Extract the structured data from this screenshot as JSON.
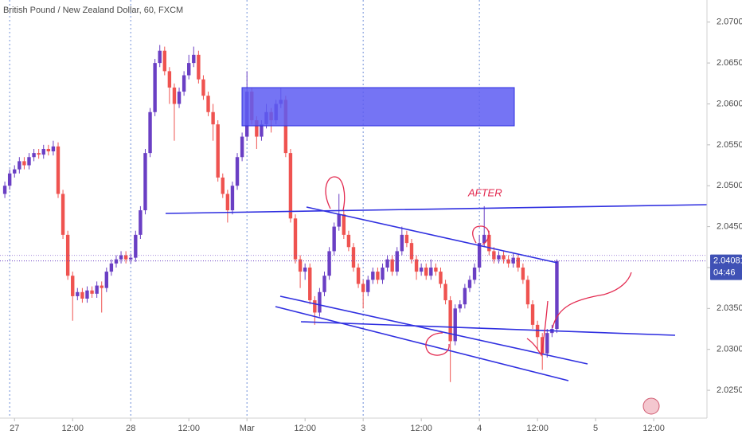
{
  "chart_data": {
    "type": "candlestick",
    "title": "British Pound / New Zealand Dollar, 60, FXCM",
    "up_color": "#6a3fc4",
    "down_color": "#ef5350",
    "x": [
      -2,
      -1,
      0,
      1,
      2,
      3,
      4,
      5,
      6,
      7,
      8,
      9,
      10,
      11,
      12,
      13,
      14,
      15,
      16,
      17,
      18,
      19,
      20,
      21,
      22,
      23,
      24,
      25,
      26,
      27,
      28,
      29,
      30,
      31,
      32,
      33,
      34,
      35,
      36,
      37,
      38,
      39,
      40,
      41,
      42,
      43,
      44,
      45,
      46,
      47,
      48,
      49,
      50,
      51,
      52,
      53,
      54,
      55,
      56,
      57,
      58,
      59,
      60,
      61,
      62,
      63,
      64,
      65,
      66,
      67,
      68,
      69,
      70,
      71,
      72,
      73,
      74,
      75,
      76,
      77,
      78,
      79,
      80,
      81,
      82,
      83,
      84,
      85,
      86,
      87,
      88,
      89,
      90,
      91,
      92,
      93,
      94,
      95,
      96,
      97,
      98,
      99,
      100,
      101,
      102,
      103,
      104,
      105,
      106,
      107,
      108,
      109,
      110,
      111,
      112
    ],
    "open": [
      2.049,
      2.05,
      2.0515,
      2.052,
      2.053,
      2.0525,
      2.0535,
      2.054,
      2.0538,
      2.0545,
      2.0542,
      2.0548,
      2.049,
      2.044,
      2.039,
      2.0365,
      2.037,
      2.0362,
      2.0372,
      2.0368,
      2.0378,
      2.0375,
      2.0395,
      2.0405,
      2.041,
      2.0415,
      2.041,
      2.0412,
      2.044,
      2.047,
      2.054,
      2.059,
      2.065,
      2.0665,
      2.064,
      2.062,
      2.06,
      2.0615,
      2.0635,
      2.065,
      2.066,
      2.063,
      2.061,
      2.059,
      2.0575,
      2.051,
      2.049,
      2.047,
      2.05,
      2.0535,
      2.056,
      2.0615,
      2.058,
      2.056,
      2.0575,
      2.059,
      2.058,
      2.06,
      2.0605,
      2.054,
      2.046,
      2.041,
      2.0395,
      2.04,
      2.036,
      2.0345,
      2.037,
      2.039,
      2.042,
      2.045,
      2.0465,
      2.044,
      2.0425,
      2.04,
      2.038,
      2.037,
      2.0385,
      2.0395,
      2.0385,
      2.04,
      2.041,
      2.0395,
      2.042,
      2.044,
      2.043,
      2.041,
      2.0395,
      2.04,
      2.039,
      2.04,
      2.0395,
      2.038,
      2.036,
      2.031,
      2.035,
      2.0355,
      2.0375,
      2.0385,
      2.04,
      2.043,
      2.044,
      2.042,
      2.041,
      2.0415,
      2.041,
      2.0405,
      2.0412,
      2.04,
      2.0385,
      2.0355,
      2.033,
      2.0315,
      2.0295,
      2.032,
      2.0325
    ],
    "high": [
      2.0505,
      2.052,
      2.0525,
      2.0535,
      2.0535,
      2.054,
      2.0545,
      2.0545,
      2.055,
      2.055,
      2.0555,
      2.0553,
      2.0495,
      2.0445,
      2.0395,
      2.0375,
      2.0375,
      2.0377,
      2.0377,
      2.0383,
      2.0383,
      2.04,
      2.041,
      2.0415,
      2.042,
      2.042,
      2.0417,
      2.0445,
      2.0475,
      2.0545,
      2.0595,
      2.0655,
      2.0672,
      2.067,
      2.0645,
      2.0625,
      2.062,
      2.064,
      2.066,
      2.067,
      2.0665,
      2.0635,
      2.0615,
      2.06,
      2.058,
      2.0515,
      2.0495,
      2.0505,
      2.054,
      2.0565,
      2.064,
      2.062,
      2.0585,
      2.058,
      2.06,
      2.0595,
      2.0605,
      2.062,
      2.061,
      2.0545,
      2.0465,
      2.0415,
      2.0405,
      2.0405,
      2.0365,
      2.0375,
      2.0395,
      2.0425,
      2.0455,
      2.049,
      2.047,
      2.0445,
      2.043,
      2.0405,
      2.0385,
      2.039,
      2.04,
      2.04,
      2.0405,
      2.0415,
      2.0415,
      2.0425,
      2.045,
      2.0445,
      2.0435,
      2.0415,
      2.0405,
      2.0405,
      2.041,
      2.0405,
      2.04,
      2.0385,
      2.0365,
      2.0355,
      2.036,
      2.038,
      2.039,
      2.0405,
      2.044,
      2.0475,
      2.0445,
      2.0425,
      2.042,
      2.042,
      2.0415,
      2.0417,
      2.0417,
      2.0405,
      2.039,
      2.036,
      2.0335,
      2.032,
      2.0325,
      2.033,
      2.041
    ],
    "low": [
      2.0485,
      2.0495,
      2.051,
      2.0515,
      2.052,
      2.052,
      2.053,
      2.0533,
      2.0533,
      2.0537,
      2.0537,
      2.0485,
      2.0435,
      2.0385,
      2.0335,
      2.036,
      2.0357,
      2.0357,
      2.0363,
      2.0363,
      2.0345,
      2.037,
      2.039,
      2.04,
      2.0405,
      2.0405,
      2.0405,
      2.0407,
      2.0435,
      2.0465,
      2.0535,
      2.0585,
      2.0645,
      2.0635,
      2.06,
      2.0555,
      2.0595,
      2.061,
      2.063,
      2.0645,
      2.0625,
      2.0605,
      2.0585,
      2.0555,
      2.0505,
      2.0485,
      2.0455,
      2.0465,
      2.0495,
      2.053,
      2.0555,
      2.0575,
      2.0545,
      2.0555,
      2.057,
      2.0565,
      2.0575,
      2.0595,
      2.0535,
      2.0455,
      2.0405,
      2.0375,
      2.0385,
      2.0355,
      2.033,
      2.034,
      2.0365,
      2.0385,
      2.0415,
      2.0445,
      2.0435,
      2.042,
      2.0395,
      2.0375,
      2.035,
      2.0365,
      2.038,
      2.038,
      2.038,
      2.0395,
      2.039,
      2.039,
      2.0415,
      2.0425,
      2.0405,
      2.0385,
      2.039,
      2.0385,
      2.0385,
      2.039,
      2.0375,
      2.0355,
      2.026,
      2.0305,
      2.0345,
      2.035,
      2.037,
      2.038,
      2.0395,
      2.0425,
      2.0415,
      2.0405,
      2.0405,
      2.0405,
      2.04,
      2.04,
      2.0395,
      2.038,
      2.035,
      2.0325,
      2.03,
      2.0275,
      2.029,
      2.0315,
      2.032
    ],
    "close": [
      2.05,
      2.0515,
      2.052,
      2.053,
      2.0525,
      2.0535,
      2.054,
      2.0538,
      2.0545,
      2.0542,
      2.0548,
      2.049,
      2.044,
      2.039,
      2.0365,
      2.037,
      2.0362,
      2.0372,
      2.0368,
      2.0378,
      2.0375,
      2.0395,
      2.0405,
      2.041,
      2.0415,
      2.041,
      2.0412,
      2.044,
      2.047,
      2.054,
      2.059,
      2.065,
      2.0665,
      2.064,
      2.062,
      2.06,
      2.0615,
      2.0635,
      2.065,
      2.066,
      2.063,
      2.061,
      2.059,
      2.0575,
      2.051,
      2.049,
      2.047,
      2.05,
      2.0535,
      2.056,
      2.0615,
      2.058,
      2.056,
      2.0575,
      2.059,
      2.058,
      2.06,
      2.0605,
      2.054,
      2.046,
      2.041,
      2.0395,
      2.04,
      2.036,
      2.0345,
      2.037,
      2.039,
      2.042,
      2.045,
      2.0465,
      2.044,
      2.0425,
      2.04,
      2.038,
      2.037,
      2.0385,
      2.0395,
      2.0385,
      2.04,
      2.041,
      2.0395,
      2.042,
      2.044,
      2.043,
      2.041,
      2.0395,
      2.04,
      2.039,
      2.04,
      2.0395,
      2.038,
      2.036,
      2.031,
      2.035,
      2.0355,
      2.0375,
      2.0385,
      2.04,
      2.043,
      2.044,
      2.042,
      2.041,
      2.0415,
      2.041,
      2.0405,
      2.0412,
      2.04,
      2.0385,
      2.0355,
      2.033,
      2.0315,
      2.0295,
      2.032,
      2.0325,
      2.04081
    ],
    "xlim": [
      -3,
      143
    ],
    "ylim": [
      2.0216,
      2.0727
    ],
    "xticks": [
      {
        "value": 0,
        "label": "27"
      },
      {
        "value": 12,
        "label": "12:00"
      },
      {
        "value": 24,
        "label": "28"
      },
      {
        "value": 36,
        "label": "12:00"
      },
      {
        "value": 48,
        "label": "Mar"
      },
      {
        "value": 60,
        "label": "12:00"
      },
      {
        "value": 72,
        "label": "3"
      },
      {
        "value": 84,
        "label": "12:00"
      },
      {
        "value": 96,
        "label": "4"
      },
      {
        "value": 108,
        "label": "12:00"
      },
      {
        "value": 120,
        "label": "5"
      },
      {
        "value": 132,
        "label": "12:00"
      }
    ],
    "yticks": [
      {
        "value": 2.025,
        "label": "2.02500"
      },
      {
        "value": 2.03,
        "label": "2.03000"
      },
      {
        "value": 2.035,
        "label": "2.03500"
      },
      {
        "value": 2.04,
        "label": "2.04000"
      },
      {
        "value": 2.045,
        "label": "2.04500"
      },
      {
        "value": 2.05,
        "label": "2.05000"
      },
      {
        "value": 2.055,
        "label": "2.05500"
      },
      {
        "value": 2.06,
        "label": "2.06000"
      },
      {
        "value": 2.065,
        "label": "2.06500"
      },
      {
        "value": 2.07,
        "label": "2.07000"
      }
    ],
    "session_breaks": [
      -1,
      24,
      48,
      72,
      96
    ],
    "last_price": 2.04081,
    "countdown": "04:46",
    "annotation": "AFTER",
    "grid": false
  }
}
